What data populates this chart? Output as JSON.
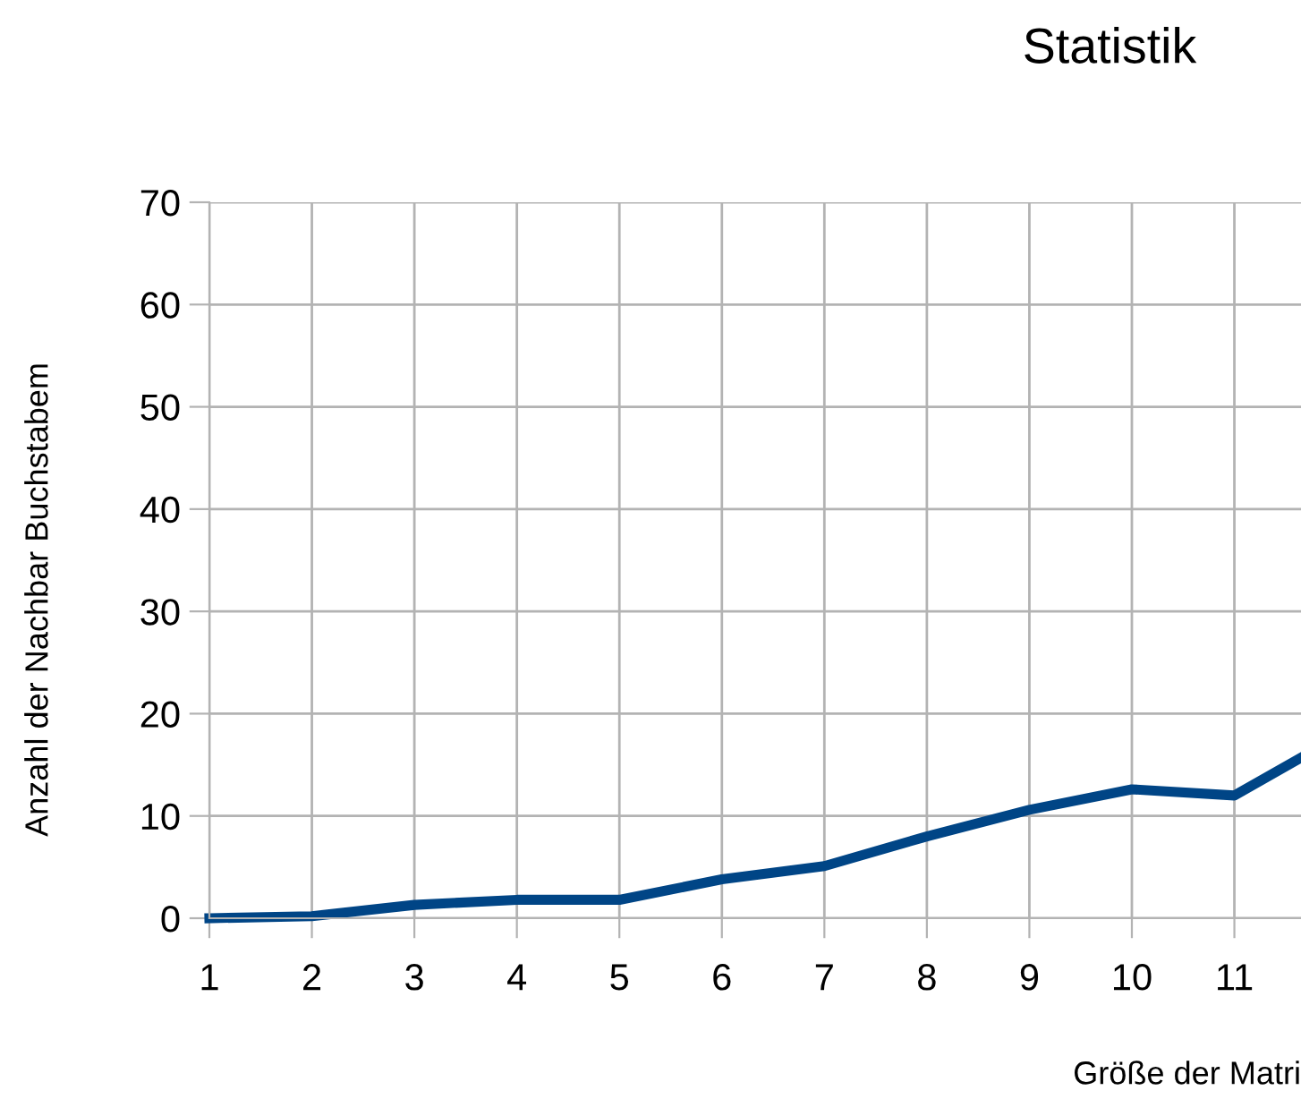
{
  "chart_data": {
    "type": "line",
    "title": "Statistik",
    "xlabel": "Größe der Matri",
    "ylabel": "Anzahl der Nachbar Buchstabem",
    "x": [
      1,
      2,
      3,
      4,
      5,
      6,
      7,
      8,
      9,
      10,
      11,
      11.65
    ],
    "series": [
      {
        "color": "#004586",
        "values": [
          0,
          0.2,
          1.3,
          1.8,
          1.8,
          3.8,
          5.1,
          8,
          10.6,
          12.6,
          12,
          15.7
        ]
      }
    ],
    "xlim": [
      1,
      11.65
    ],
    "xticks": [
      1,
      2,
      3,
      4,
      5,
      6,
      7,
      8,
      9,
      10,
      11
    ],
    "ylim": [
      0,
      70
    ],
    "yticks": [
      0,
      10,
      20,
      30,
      40,
      50,
      60,
      70
    ],
    "grid": true,
    "marker": "none",
    "line_style": "solid"
  }
}
